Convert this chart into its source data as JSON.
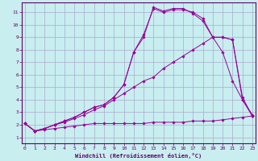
{
  "xlabel": "Windchill (Refroidissement éolien,°C)",
  "bg_color": "#c8eef0",
  "grid_color": "#aaaacc",
  "line_color": "#990099",
  "xticks": [
    0,
    1,
    2,
    3,
    4,
    5,
    6,
    7,
    8,
    9,
    10,
    11,
    12,
    13,
    14,
    15,
    16,
    17,
    18,
    19,
    20,
    21,
    22,
    23
  ],
  "yticks": [
    1,
    2,
    3,
    4,
    5,
    6,
    7,
    8,
    9,
    10,
    11
  ],
  "line1_x": [
    0,
    1,
    2,
    3,
    4,
    5,
    6,
    7,
    8,
    9,
    10,
    11,
    12,
    13,
    14,
    15,
    16,
    17,
    18,
    19,
    20,
    21,
    22,
    23
  ],
  "line1_y": [
    2.1,
    1.5,
    1.6,
    1.7,
    1.8,
    1.9,
    2.0,
    2.1,
    2.1,
    2.1,
    2.1,
    2.1,
    2.1,
    2.2,
    2.2,
    2.2,
    2.2,
    2.3,
    2.3,
    2.3,
    2.4,
    2.5,
    2.6,
    2.7
  ],
  "line2_x": [
    0,
    1,
    2,
    3,
    4,
    5,
    6,
    7,
    8,
    9,
    10,
    11,
    12,
    13,
    14,
    15,
    16,
    17,
    18,
    19,
    20,
    21,
    22,
    23
  ],
  "line2_y": [
    2.1,
    1.5,
    1.7,
    2.0,
    2.2,
    2.5,
    2.8,
    3.2,
    3.5,
    4.0,
    4.5,
    5.0,
    5.5,
    5.8,
    6.5,
    7.0,
    7.5,
    8.0,
    8.5,
    9.0,
    7.8,
    5.5,
    4.0,
    2.8
  ],
  "line3_x": [
    0,
    1,
    2,
    3,
    4,
    5,
    6,
    7,
    8,
    9,
    10,
    11,
    12,
    13,
    14,
    15,
    16,
    17,
    18,
    19,
    20,
    21,
    22,
    23
  ],
  "line3_y": [
    2.1,
    1.5,
    1.7,
    2.0,
    2.3,
    2.6,
    3.0,
    3.4,
    3.6,
    4.2,
    5.2,
    7.8,
    9.2,
    11.3,
    11.0,
    11.2,
    11.2,
    11.0,
    10.5,
    9.0,
    9.0,
    8.8,
    4.0,
    2.7
  ],
  "line4_x": [
    0,
    1,
    2,
    3,
    4,
    5,
    6,
    7,
    8,
    9,
    10,
    11,
    12,
    13,
    14,
    15,
    16,
    17,
    18,
    19,
    20,
    21,
    22,
    23
  ],
  "line4_y": [
    2.1,
    1.5,
    1.7,
    2.0,
    2.3,
    2.6,
    3.0,
    3.4,
    3.6,
    4.2,
    5.2,
    7.8,
    9.0,
    11.4,
    11.1,
    11.3,
    11.3,
    10.9,
    10.3,
    9.0,
    9.0,
    8.8,
    4.2,
    2.7
  ]
}
